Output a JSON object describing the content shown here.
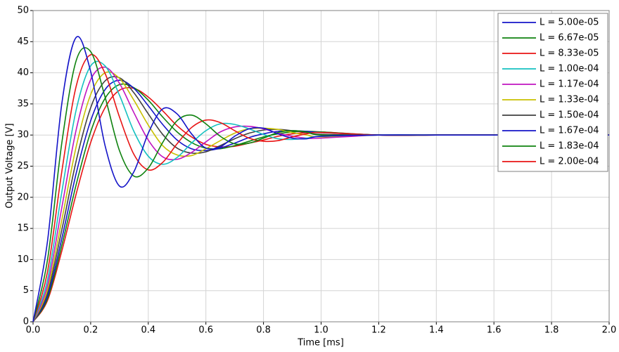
{
  "chart_data": {
    "type": "line",
    "x_label": "Time [ms]",
    "y_label": "Output Voltage [V]",
    "x": [
      0,
      0.05,
      0.1,
      0.15,
      0.2,
      0.25,
      0.3,
      0.35,
      0.4,
      0.45,
      0.5,
      0.55,
      0.6,
      0.65,
      0.7,
      0.75,
      0.8,
      0.85,
      0.9,
      0.95,
      1.0,
      1.2,
      1.4,
      1.6,
      1.8,
      2.0
    ],
    "xlim": [
      0,
      2.0
    ],
    "xticks": [
      {
        "value": 0,
        "label": "0.0"
      },
      0.2,
      0.4,
      0.6,
      0.8,
      {
        "value": 1,
        "label": "1.0"
      },
      1.2,
      1.4,
      1.6,
      1.8,
      {
        "value": 2,
        "label": "2.0"
      }
    ],
    "ylim": [
      0,
      50
    ],
    "yticks": [
      0,
      5,
      10,
      15,
      20,
      25,
      30,
      35,
      40,
      45,
      50
    ],
    "grid": true,
    "legend": "upper right",
    "series": [
      {
        "name": "L = 5.00e-05",
        "color": "#1414c8",
        "values": [
          0,
          12.9,
          35.1,
          45.7,
          40.2,
          28.3,
          21.8,
          24.1,
          30.3,
          34.2,
          33.4,
          30.2,
          27.9,
          28.1,
          29.8,
          31.0,
          31.1,
          30.2,
          29.5,
          29.4,
          29.8,
          30,
          30,
          30,
          30,
          30
        ]
      },
      {
        "name": "L = 6.67e-05",
        "color": "#0f820f",
        "values": [
          0,
          9.9,
          28.8,
          42.0,
          43.4,
          36.1,
          27.5,
          23.4,
          24.7,
          28.8,
          32.3,
          33.2,
          31.8,
          29.8,
          28.6,
          28.7,
          29.5,
          30.4,
          30.7,
          30.5,
          30.0,
          30,
          30,
          30,
          30,
          30
        ]
      },
      {
        "name": "L = 8.33e-05",
        "color": "#e81414",
        "values": [
          0,
          8.0,
          24.2,
          37.9,
          42.9,
          39.9,
          32.9,
          26.9,
          24.4,
          25.6,
          28.6,
          31.2,
          32.4,
          32.0,
          30.7,
          29.5,
          29.0,
          29.1,
          29.7,
          30.2,
          30.4,
          30,
          30,
          30,
          30,
          30
        ]
      },
      {
        "name": "L = 1.00e-04",
        "color": "#14c0c0",
        "values": [
          0,
          6.7,
          20.9,
          34.1,
          41.1,
          41.1,
          36.4,
          30.6,
          26.6,
          25.3,
          26.4,
          28.7,
          30.7,
          31.8,
          31.7,
          31.0,
          30.1,
          29.4,
          29.3,
          29.5,
          29.8,
          30,
          30,
          30,
          30,
          30
        ]
      },
      {
        "name": "L = 1.17e-04",
        "color": "#c014c0",
        "values": [
          0,
          5.8,
          18.4,
          30.9,
          38.9,
          40.9,
          38.3,
          33.6,
          29.2,
          26.5,
          26.1,
          27.2,
          28.9,
          30.5,
          31.3,
          31.4,
          31.0,
          30.3,
          29.8,
          29.5,
          29.5,
          30,
          30,
          30,
          30,
          30
        ]
      },
      {
        "name": "L = 1.33e-04",
        "color": "#c8c000",
        "values": [
          0,
          5.1,
          16.4,
          28.2,
          36.5,
          40.0,
          39.1,
          35.6,
          31.6,
          28.3,
          26.8,
          26.7,
          27.8,
          29.1,
          30.3,
          31.0,
          31.1,
          30.9,
          30.4,
          30.0,
          29.7,
          30,
          30,
          30,
          30,
          30
        ]
      },
      {
        "name": "L = 1.50e-04",
        "color": "#404040",
        "values": [
          0,
          4.6,
          14.8,
          25.9,
          34.4,
          38.7,
          39.2,
          36.8,
          33.4,
          30.1,
          27.9,
          27.1,
          27.3,
          28.3,
          29.4,
          30.3,
          30.8,
          30.9,
          30.7,
          30.4,
          30.1,
          30,
          30,
          30,
          30,
          30
        ]
      },
      {
        "name": "L = 1.67e-04",
        "color": "#1414c8",
        "values": [
          0,
          4.1,
          13.4,
          23.9,
          32.3,
          37.3,
          38.8,
          37.5,
          34.7,
          31.7,
          29.2,
          27.8,
          27.5,
          27.9,
          28.7,
          29.6,
          30.2,
          30.6,
          30.7,
          30.6,
          30.4,
          30,
          30,
          30,
          30,
          30
        ]
      },
      {
        "name": "L = 1.83e-04",
        "color": "#0f820f",
        "values": [
          0,
          3.7,
          12.3,
          22.1,
          30.5,
          35.9,
          38.1,
          37.6,
          35.6,
          32.9,
          30.5,
          28.8,
          27.9,
          27.8,
          28.3,
          29.0,
          29.7,
          30.2,
          30.5,
          30.6,
          30.5,
          30,
          30,
          30,
          30,
          30
        ]
      },
      {
        "name": "L = 2.00e-04",
        "color": "#e81414",
        "values": [
          0,
          3.4,
          11.4,
          20.6,
          28.8,
          34.4,
          37.2,
          37.5,
          36.1,
          33.9,
          31.5,
          29.7,
          28.5,
          28.1,
          28.2,
          28.7,
          29.2,
          29.8,
          30.2,
          30.4,
          30.5,
          30,
          30,
          30,
          30,
          30
        ]
      }
    ]
  }
}
